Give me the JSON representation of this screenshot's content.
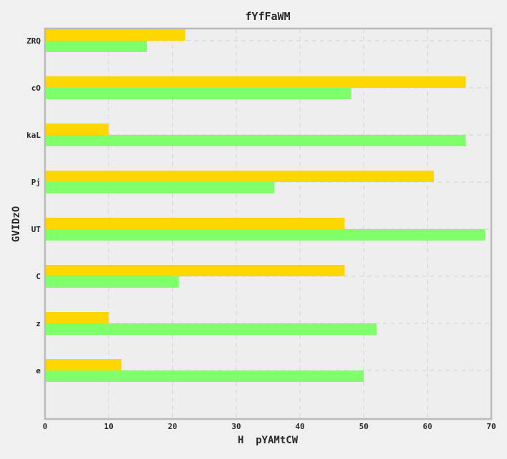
{
  "chart_data": {
    "type": "bar",
    "orientation": "horizontal",
    "title": "fYfFaWM",
    "xlabel": "H  pYAMtCW",
    "ylabel": "GVIDzO",
    "categories": [
      "ZRQ",
      "cO",
      "kaL",
      "Pj",
      "UT",
      "C",
      "z",
      "e"
    ],
    "series": [
      {
        "values": [
          22,
          66,
          10,
          61,
          47,
          47,
          10,
          12
        ],
        "color": "#ffd700"
      },
      {
        "values": [
          16,
          48,
          66,
          36,
          69,
          21,
          52,
          50
        ],
        "color": "#7fff6a"
      }
    ],
    "xlim": [
      0,
      70
    ],
    "xticks": [
      0,
      10,
      20,
      30,
      40,
      50,
      60,
      70
    ],
    "grid": true,
    "legend": "none"
  },
  "colors": {
    "background": "#f0f0f0",
    "plot_background": "#eeeeee",
    "frame": "#bbbbbb",
    "grid": "#d8d8d8"
  }
}
